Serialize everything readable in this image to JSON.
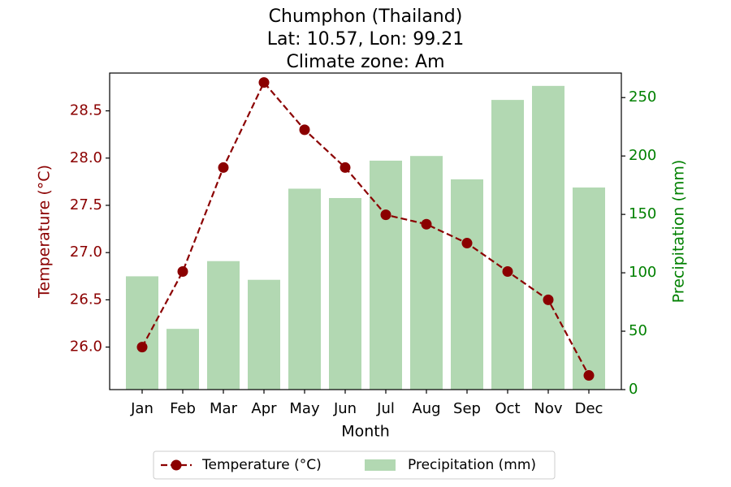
{
  "chart_data": {
    "type": "bar+line",
    "title": "Chumphon (Thailand)",
    "subtitle_lines": [
      "Lat: 10.57, Lon: 99.21",
      "Climate zone: Am"
    ],
    "xlabel": "Month",
    "ylabel_left": "Temperature (°C)",
    "ylabel_right": "Precipitation (mm)",
    "categories": [
      "Jan",
      "Feb",
      "Mar",
      "Apr",
      "May",
      "Jun",
      "Jul",
      "Aug",
      "Sep",
      "Oct",
      "Nov",
      "Dec"
    ],
    "series": [
      {
        "name": "Temperature (°C)",
        "type": "line",
        "axis": "left",
        "color": "#8b0000",
        "values": [
          26.0,
          26.8,
          27.9,
          28.8,
          28.3,
          27.9,
          27.4,
          27.3,
          27.1,
          26.8,
          26.5,
          25.7
        ]
      },
      {
        "name": "Precipitation (mm)",
        "type": "bar",
        "axis": "right",
        "color": "#b2d8b2",
        "values": [
          97,
          52,
          110,
          94,
          172,
          164,
          196,
          200,
          180,
          248,
          260,
          173
        ]
      }
    ],
    "ylim_left": [
      25.55,
      28.9
    ],
    "ylim_right": [
      0,
      271
    ],
    "yticks_left": [
      "26.0",
      "26.5",
      "27.0",
      "27.5",
      "28.0",
      "28.5"
    ],
    "yticks_right": [
      "0",
      "50",
      "100",
      "150",
      "200",
      "250"
    ],
    "left_axis_color": "#8b0000",
    "right_axis_color": "#008000",
    "grid": false,
    "legend_position": "bottom-center"
  }
}
